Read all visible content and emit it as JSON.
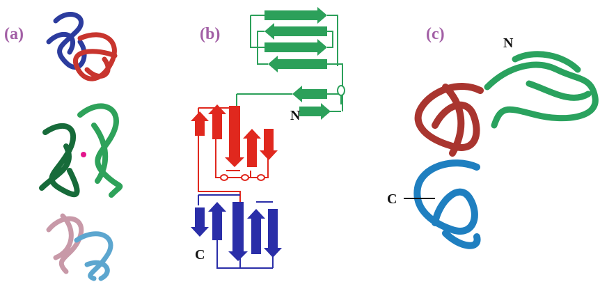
{
  "panels": [
    {
      "label": "(a)"
    },
    {
      "label": "(b)",
      "n_label": "N",
      "c_label": "C"
    },
    {
      "label": "(c)",
      "n_label": "N",
      "c_label": "C"
    }
  ]
}
